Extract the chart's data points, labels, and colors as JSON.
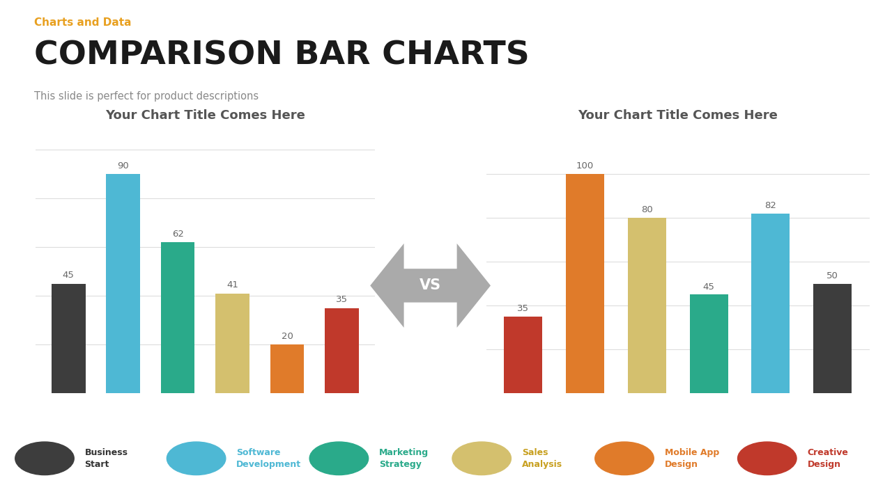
{
  "title_label": "Charts and Data",
  "title_main": "COMPARISON BAR CHARTS",
  "title_sub": "This slide is perfect for product descriptions",
  "chart1_title": "Your Chart Title Comes Here",
  "chart2_title": "Your Chart Title Comes Here",
  "chart1_values": [
    45,
    90,
    62,
    41,
    20,
    35
  ],
  "chart2_values": [
    35,
    100,
    80,
    45,
    82,
    50
  ],
  "chart1_colors": [
    "#3d3d3d",
    "#4eb8d4",
    "#2aaa8a",
    "#d4c06e",
    "#e07b2a",
    "#c0392b"
  ],
  "chart2_colors": [
    "#c0392b",
    "#e07b2a",
    "#d4c06e",
    "#2aaa8a",
    "#4eb8d4",
    "#3d3d3d"
  ],
  "background_color": "#ffffff",
  "legend_items": [
    {
      "label": "Business\nStart",
      "color": "#3d3d3d",
      "text_color": "#333333"
    },
    {
      "label": "Software\nDevelopment",
      "color": "#4eb8d4",
      "text_color": "#4eb8d4"
    },
    {
      "label": "Marketing\nStrategy",
      "color": "#2aaa8a",
      "text_color": "#2aaa8a"
    },
    {
      "label": "Sales\nAnalysis",
      "color": "#d4c06e",
      "text_color": "#c8a020"
    },
    {
      "label": "Mobile App\nDesign",
      "color": "#e07b2a",
      "text_color": "#e07b2a"
    },
    {
      "label": "Creative\nDesign",
      "color": "#c0392b",
      "text_color": "#c0392b"
    }
  ],
  "vs_arrow_color": "#aaaaaa",
  "title_label_color": "#e8a020",
  "title_main_color": "#1a1a1a",
  "title_sub_color": "#888888",
  "chart_title_color": "#555555",
  "value_label_color": "#666666",
  "grid_color": "#dddddd"
}
